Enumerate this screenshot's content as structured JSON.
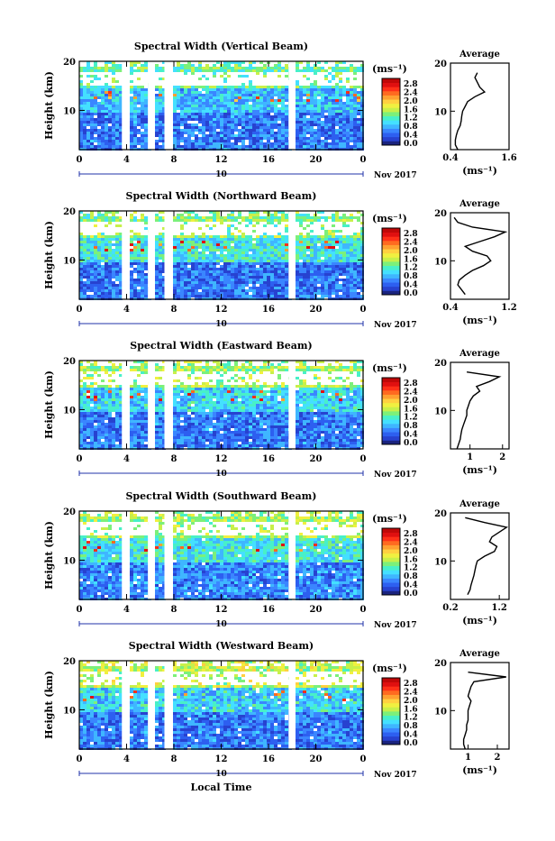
{
  "figure": {
    "common": {
      "ylabel": "Height (km)",
      "x_ticks": [
        "0",
        "4",
        "8",
        "12",
        "16",
        "20",
        "0"
      ],
      "y_ticks": [
        "10",
        "20"
      ],
      "day_label": "10",
      "month_year": "Nov 2017",
      "unit": "(ms⁻¹)",
      "colorbar_ticks": [
        "0.0",
        "0.4",
        "0.8",
        "1.2",
        "1.6",
        "2.0",
        "2.4",
        "2.8"
      ],
      "average_title": "Average",
      "average_xlabel": "(ms⁻¹)",
      "xlabel": "Local Time"
    },
    "colors": {
      "colormap": [
        "#1a237e",
        "#2742d0",
        "#2d5ff0",
        "#3a86ff",
        "#3fb6ff",
        "#44e0ff",
        "#48f0c8",
        "#7cf07a",
        "#c8f04a",
        "#f0f040",
        "#ffd040",
        "#ffa030",
        "#ff6a20",
        "#ff3018",
        "#e01010",
        "#c00808"
      ]
    }
  },
  "chart_data": [
    {
      "type": "heatmap",
      "title": "Spectral Width (Vertical Beam)",
      "xlabel": "",
      "ylabel": "Height (km)",
      "xlim": [
        0,
        24
      ],
      "ylim": [
        2,
        20
      ],
      "colorbar": {
        "label": "(ms⁻¹)",
        "range": [
          0.0,
          3.0
        ]
      },
      "data_gaps_hours": [
        [
          3.6,
          4.2
        ],
        [
          5.8,
          6.1
        ],
        [
          7.2,
          7.8
        ],
        [
          17.7,
          18.0
        ]
      ],
      "typical_width": {
        "below_10km": 0.6,
        "10_to_15km": 0.9,
        "above_15km": 1.3
      },
      "average_profile": {
        "xlim": [
          0.4,
          1.6
        ],
        "x_ticks": [
          "0.4",
          "1.6"
        ],
        "heights": [
          2,
          3,
          4,
          5,
          6,
          7,
          8,
          9,
          10,
          11,
          12,
          13,
          14,
          15,
          16,
          17,
          18
        ],
        "values": [
          0.55,
          0.5,
          0.5,
          0.52,
          0.55,
          0.6,
          0.62,
          0.63,
          0.65,
          0.7,
          0.75,
          0.9,
          1.1,
          1.0,
          0.95,
          0.9,
          0.95
        ]
      }
    },
    {
      "type": "heatmap",
      "title": "Spectral Width (Northward Beam)",
      "xlabel": "",
      "ylabel": "Height (km)",
      "xlim": [
        0,
        24
      ],
      "ylim": [
        2,
        20
      ],
      "colorbar": {
        "label": "(ms⁻¹)",
        "range": [
          0.0,
          3.0
        ]
      },
      "data_gaps_hours": [
        [
          3.6,
          4.2
        ],
        [
          5.8,
          6.1
        ],
        [
          7.2,
          7.8
        ],
        [
          17.7,
          18.0
        ]
      ],
      "typical_width": {
        "below_10km": 0.55,
        "10_to_15km": 1.1,
        "above_15km": 1.4
      },
      "average_profile": {
        "xlim": [
          0.4,
          1.2
        ],
        "x_ticks": [
          "0.4",
          "1.2"
        ],
        "heights": [
          3,
          4,
          5,
          6,
          7,
          8,
          9,
          10,
          11,
          12,
          13,
          14,
          15,
          16,
          17,
          18,
          19
        ],
        "values": [
          0.6,
          0.55,
          0.5,
          0.52,
          0.6,
          0.7,
          0.85,
          0.95,
          0.9,
          0.7,
          0.6,
          0.8,
          1.0,
          1.15,
          0.7,
          0.5,
          0.45
        ]
      }
    },
    {
      "type": "heatmap",
      "title": "Spectral Width (Eastward Beam)",
      "xlabel": "",
      "ylabel": "Height (km)",
      "xlim": [
        0,
        24
      ],
      "ylim": [
        2,
        20
      ],
      "colorbar": {
        "label": "(ms⁻¹)",
        "range": [
          0.0,
          3.0
        ]
      },
      "data_gaps_hours": [
        [
          3.6,
          4.2
        ],
        [
          5.8,
          6.1
        ],
        [
          7.2,
          7.8
        ],
        [
          17.7,
          18.0
        ]
      ],
      "typical_width": {
        "below_10km": 0.6,
        "10_to_15km": 1.0,
        "above_15km": 1.5
      },
      "average_profile": {
        "xlim": [
          0.4,
          2.2
        ],
        "x_ticks": [
          "1",
          "2"
        ],
        "heights": [
          2,
          3,
          4,
          5,
          6,
          7,
          8,
          9,
          10,
          11,
          12,
          13,
          14,
          15,
          16,
          17,
          18
        ],
        "values": [
          0.6,
          0.65,
          0.7,
          0.72,
          0.75,
          0.8,
          0.85,
          0.9,
          0.9,
          0.95,
          1.0,
          1.1,
          1.3,
          1.2,
          1.6,
          1.9,
          0.9
        ]
      }
    },
    {
      "type": "heatmap",
      "title": "Spectral Width (Southward Beam)",
      "xlabel": "",
      "ylabel": "Height (km)",
      "xlim": [
        0,
        24
      ],
      "ylim": [
        2,
        20
      ],
      "colorbar": {
        "label": "(ms⁻¹)",
        "range": [
          0.0,
          3.0
        ]
      },
      "data_gaps_hours": [
        [
          3.6,
          4.2
        ],
        [
          5.8,
          6.1
        ],
        [
          7.2,
          7.8
        ],
        [
          17.7,
          18.0
        ]
      ],
      "typical_width": {
        "below_10km": 0.65,
        "10_to_15km": 1.1,
        "above_15km": 1.5
      },
      "average_profile": {
        "xlim": [
          0.2,
          1.4
        ],
        "x_ticks": [
          "0.2",
          "1.2"
        ],
        "heights": [
          3,
          4,
          5,
          6,
          7,
          8,
          9,
          10,
          11,
          12,
          13,
          14,
          15,
          16,
          17,
          18,
          19
        ],
        "values": [
          0.55,
          0.6,
          0.62,
          0.65,
          0.68,
          0.7,
          0.72,
          0.75,
          0.9,
          1.1,
          1.15,
          1.0,
          1.05,
          1.2,
          1.35,
          0.9,
          0.5
        ]
      }
    },
    {
      "type": "heatmap",
      "title": "Spectral Width (Westward Beam)",
      "xlabel": "Local Time",
      "ylabel": "Height (km)",
      "xlim": [
        0,
        24
      ],
      "ylim": [
        2,
        20
      ],
      "colorbar": {
        "label": "(ms⁻¹)",
        "range": [
          0.0,
          3.0
        ]
      },
      "data_gaps_hours": [
        [
          3.6,
          4.2
        ],
        [
          5.8,
          6.1
        ],
        [
          7.2,
          7.8
        ],
        [
          17.7,
          18.0
        ]
      ],
      "typical_width": {
        "below_10km": 0.6,
        "10_to_15km": 1.0,
        "above_15km": 1.6
      },
      "average_profile": {
        "xlim": [
          0.4,
          2.4
        ],
        "x_ticks": [
          "1",
          "2"
        ],
        "heights": [
          2,
          3,
          4,
          5,
          6,
          7,
          8,
          9,
          10,
          11,
          12,
          13,
          14,
          15,
          16,
          17,
          18
        ],
        "values": [
          0.9,
          0.85,
          0.85,
          0.9,
          0.95,
          0.95,
          1.0,
          1.0,
          1.0,
          1.05,
          1.1,
          1.0,
          1.05,
          1.1,
          1.2,
          2.3,
          1.0
        ]
      }
    }
  ]
}
